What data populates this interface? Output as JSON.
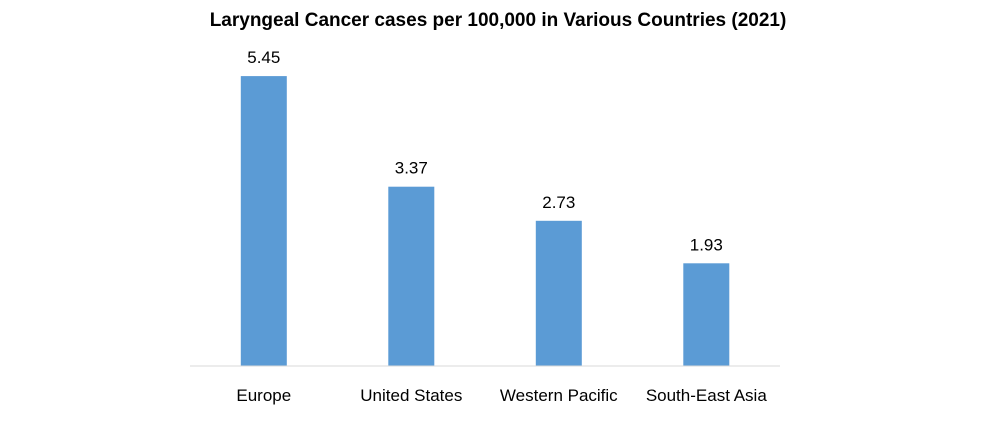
{
  "chart_data": {
    "type": "bar",
    "title": "Laryngeal Cancer cases per 100,000 in Various Countries (2021)",
    "categories": [
      "Europe",
      "United States",
      "Western Pacific",
      "South-East Asia"
    ],
    "values": [
      5.45,
      3.37,
      2.73,
      1.93
    ],
    "xlabel": "",
    "ylabel": "",
    "ylim": [
      0,
      6
    ],
    "grid": false,
    "legend": "none",
    "data_labels": true
  },
  "colors": {
    "bar": "#5B9BD5",
    "axis": "#D9D9D9",
    "text": "#000000"
  }
}
